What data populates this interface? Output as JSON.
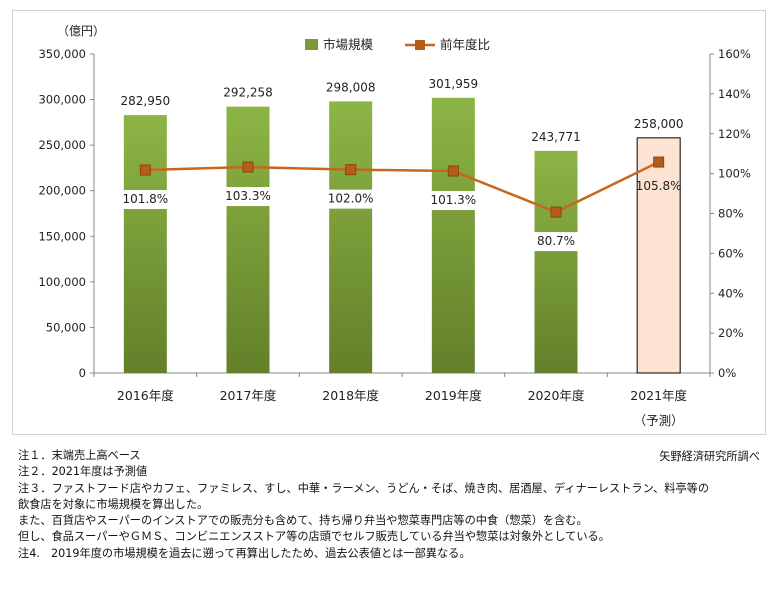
{
  "chart_data": {
    "type": "bar+line",
    "categories": [
      "2016年度",
      "2017年度",
      "2018年度",
      "2019年度",
      "2020年度",
      "2021年度"
    ],
    "category_sublabels": [
      "",
      "",
      "",
      "",
      "",
      "（予測）"
    ],
    "series": [
      {
        "name": "市場規模",
        "type": "bar",
        "axis": "left",
        "values": [
          282950,
          292258,
          298008,
          301959,
          243771,
          258000
        ],
        "labels": [
          "282,950",
          "292,258",
          "298,008",
          "301,959",
          "243,771",
          "258,000"
        ],
        "color": "#7a9a3a",
        "forecast_index": 5,
        "forecast_color": "#fde4d2"
      },
      {
        "name": "前年度比",
        "type": "line",
        "axis": "right",
        "values": [
          101.8,
          103.3,
          102.0,
          101.3,
          80.7,
          105.8
        ],
        "labels": [
          "101.8%",
          "103.3%",
          "102.0%",
          "101.3%",
          "80.7%",
          "105.8%"
        ],
        "color": "#c8671c"
      }
    ],
    "y_left": {
      "unit": "（億円）",
      "range": [
        0,
        350000
      ],
      "ticks": [
        0,
        50000,
        100000,
        150000,
        200000,
        250000,
        300000,
        350000
      ],
      "tick_labels": [
        "0",
        "50,000",
        "100,000",
        "150,000",
        "200,000",
        "250,000",
        "300,000",
        "350,000"
      ]
    },
    "y_right": {
      "range": [
        0,
        160
      ],
      "ticks": [
        0,
        20,
        40,
        60,
        80,
        100,
        120,
        140,
        160
      ],
      "tick_labels": [
        "0%",
        "20%",
        "40%",
        "60%",
        "80%",
        "100%",
        "120%",
        "140%",
        "160%"
      ]
    },
    "legend_position": "top-center",
    "grid": false
  },
  "notes": [
    "注１．末端売上高ベース",
    "注２．2021年度は予測値",
    "注３．ファストフード店やカフェ、ファミレス、すし、中華・ラーメン、うどん・そば、焼き肉、居酒屋、ディナーレストラン、料亭等の",
    "飲食店を対象に市場規模を算出した。",
    "また、百貨店やスーパーのインストアでの販売分も含めて、持ち帰り弁当や惣菜専門店等の中食（惣菜）を含む。",
    "但し、食品スーパーやＧＭＳ、コンビニエンスストア等の店頭でセルフ販売している弁当や惣菜は対象外としている。",
    "注4.　2019年度の市場規模を過去に遡って再算出したため、過去公表値とは一部異なる。"
  ],
  "source": "矢野経済研究所調べ"
}
